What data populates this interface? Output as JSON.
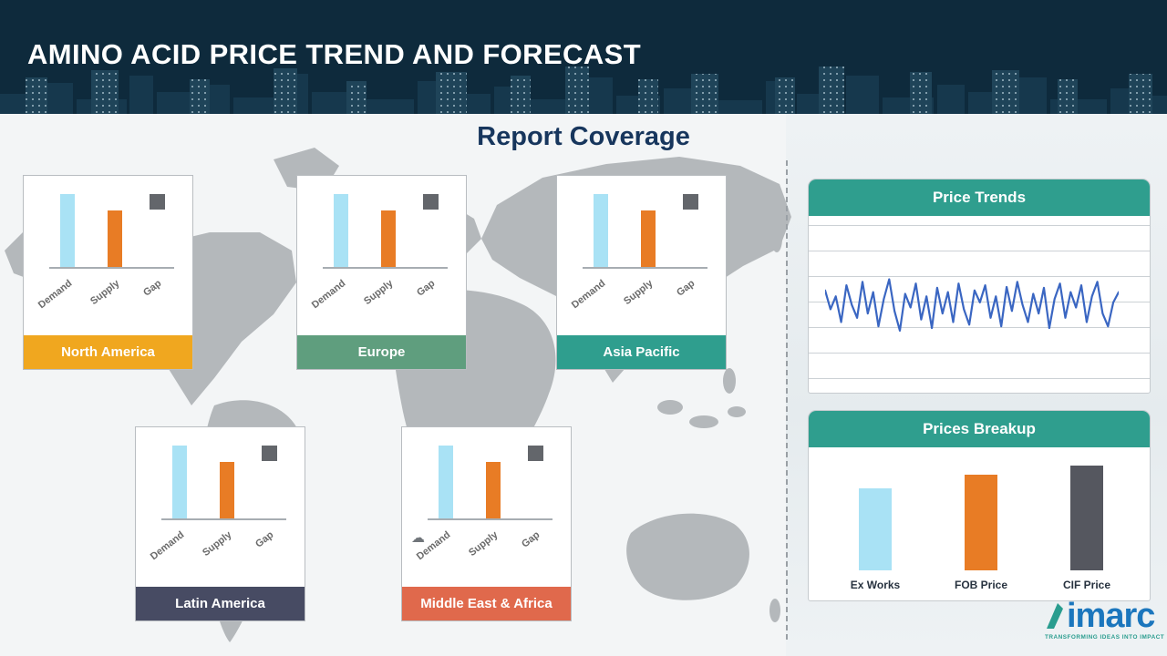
{
  "header": {
    "title": "AMINO ACID PRICE TREND AND FORECAST"
  },
  "section": {
    "title": "Report Coverage"
  },
  "mini_chart": {
    "labels": [
      "Demand",
      "Supply",
      "Gap"
    ]
  },
  "regions": [
    {
      "name": "North America",
      "color": "#f0a71f"
    },
    {
      "name": "Europe",
      "color": "#5f9e7e"
    },
    {
      "name": "Asia Pacific",
      "color": "#2f9e8e"
    },
    {
      "name": "Latin America",
      "color": "#474b63"
    },
    {
      "name": "Middle East & Africa",
      "color": "#e0694c"
    }
  ],
  "panels": {
    "price_trends": {
      "title": "Price Trends"
    },
    "prices_breakup": {
      "title": "Prices Breakup"
    }
  },
  "logo": {
    "text": "imarc",
    "tagline": "TRANSFORMING IDEAS INTO IMPACT"
  },
  "colors": {
    "header_bg": "#0e2a3c",
    "panel_header": "#2f9e8e",
    "demand_bar": "#a9e2f5",
    "supply_bar": "#e87c25",
    "gap_marker": "#63666b",
    "trend_line": "#3a66c2",
    "title_navy": "#17365d"
  },
  "chart_data": [
    {
      "id": "region_mini",
      "type": "bar",
      "title": "Demand / Supply / Gap mini chart (repeated for North America, Europe, Asia Pacific, Latin America, Middle East & Africa)",
      "categories": [
        "Demand",
        "Supply",
        "Gap"
      ],
      "values": [
        100,
        77,
        21
      ],
      "colors": [
        "#a9e2f5",
        "#e87c25",
        "#63666b"
      ],
      "note": "relative heights, no numeric axis shown; Gap drawn as a small floating square marker"
    },
    {
      "id": "price_trends",
      "type": "line",
      "title": "Price Trends",
      "xlabel": "",
      "ylabel": "",
      "ylim": [
        0,
        100
      ],
      "grid": true,
      "line_color": "#3a66c2",
      "values": [
        62,
        40,
        55,
        25,
        68,
        45,
        30,
        72,
        35,
        60,
        20,
        52,
        75,
        38,
        15,
        58,
        42,
        70,
        28,
        55,
        18,
        65,
        35,
        60,
        25,
        70,
        40,
        22,
        62,
        48,
        68,
        30,
        55,
        20,
        66,
        38,
        72,
        45,
        25,
        58,
        35,
        65,
        18,
        52,
        70,
        30,
        60,
        42,
        68,
        25,
        55,
        72,
        35,
        20,
        48,
        60
      ],
      "note": "no axis tick labels shown; values estimated from line shape"
    },
    {
      "id": "prices_breakup",
      "type": "bar",
      "title": "Prices Breakup",
      "categories": [
        "Ex Works",
        "FOB Price",
        "CIF Price"
      ],
      "values": [
        78,
        91,
        100
      ],
      "colors": [
        "#a9e2f5",
        "#e87c25",
        "#55575f"
      ],
      "note": "relative heights, no numeric axis shown"
    }
  ]
}
